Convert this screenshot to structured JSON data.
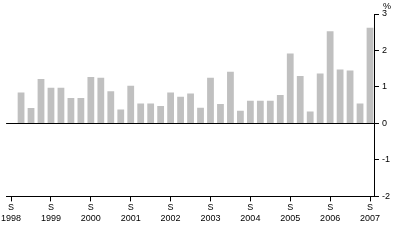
{
  "chart_data": {
    "type": "bar",
    "ylabel": "%",
    "categories": [
      "S 1998",
      null,
      null,
      null,
      "S 1999",
      null,
      null,
      null,
      "S 2000",
      null,
      null,
      null,
      "S 2001",
      null,
      null,
      null,
      "S 2002",
      null,
      null,
      null,
      "S 2003",
      null,
      null,
      null,
      "S 2004",
      null,
      null,
      null,
      "S 2005",
      null,
      null,
      null,
      "S 2006",
      null,
      null,
      null,
      "S 2007"
    ],
    "values": [
      null,
      0.85,
      0.42,
      1.22,
      0.98,
      0.98,
      0.7,
      0.7,
      1.27,
      1.25,
      0.88,
      0.38,
      1.03,
      0.55,
      0.55,
      0.48,
      0.85,
      0.73,
      0.82,
      0.43,
      1.25,
      0.53,
      1.42,
      0.35,
      0.62,
      0.62,
      0.62,
      0.78,
      1.92,
      1.3,
      0.33,
      1.37,
      2.53,
      1.48,
      1.45,
      0.55,
      2.62
    ],
    "color": "#c0c0c0",
    "ylim": [
      -2,
      3
    ],
    "yticks": [
      -2,
      -1,
      0,
      1,
      2,
      3
    ],
    "grid": false
  }
}
